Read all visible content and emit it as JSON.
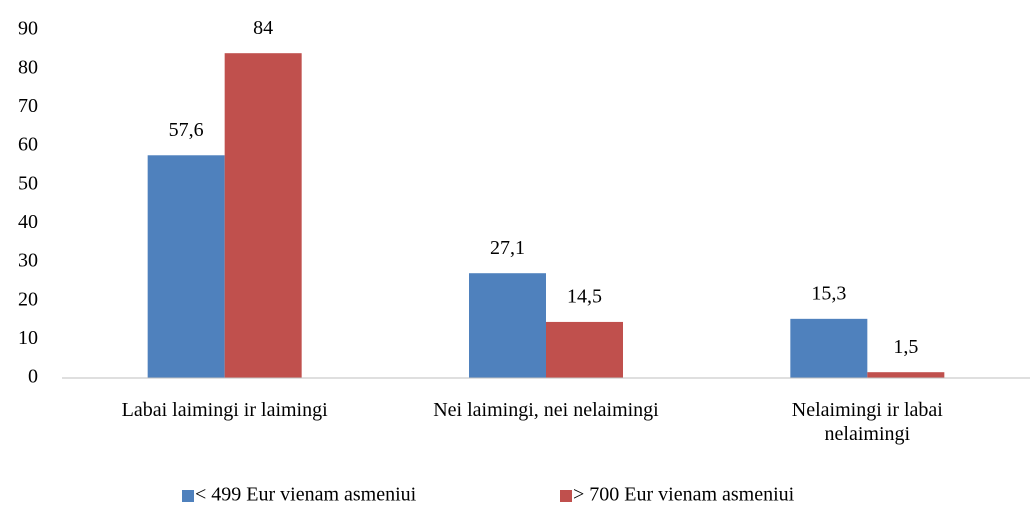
{
  "chart_data": {
    "type": "bar",
    "categories": [
      "Labai laimingi ir laimingi",
      "Nei laimingi, nei nelaimingi",
      "Nelaimingi ir labai nelaimingi"
    ],
    "series": [
      {
        "name": "< 499 Eur vienam asmeniui",
        "color": "#4f81bd",
        "values": [
          57.6,
          27.1,
          15.3
        ],
        "value_labels": [
          "57,6",
          "27,1",
          "15,3"
        ]
      },
      {
        "name": "> 700 Eur vienam asmeniui",
        "color": "#c0504d",
        "values": [
          84,
          14.5,
          1.5
        ],
        "value_labels": [
          "84",
          "14,5",
          "1,5"
        ]
      }
    ],
    "ylim": [
      0,
      90
    ],
    "yticks": [
      0,
      10,
      20,
      30,
      40,
      50,
      60,
      70,
      80,
      90
    ],
    "grid": false,
    "legend": "bottom"
  }
}
